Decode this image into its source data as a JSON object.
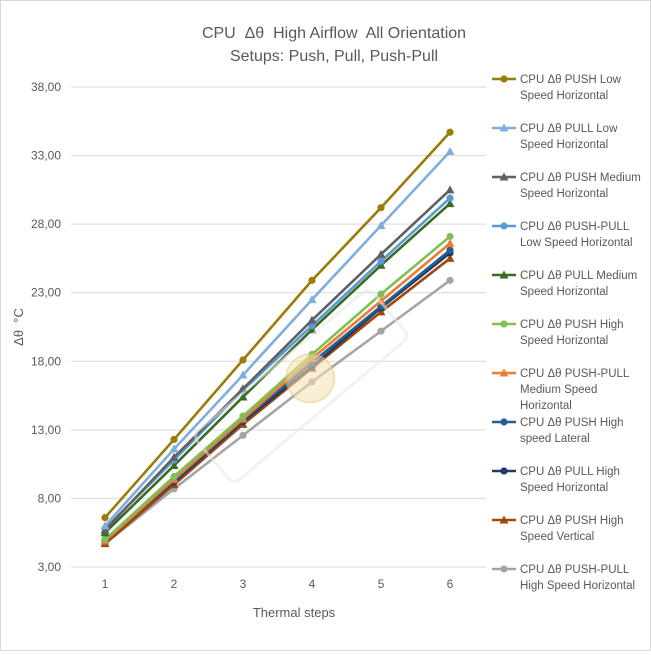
{
  "chart_data": {
    "type": "line",
    "title": "CPU  Δθ  High Airflow  All Orientation",
    "subtitle": "Setups: Push, Pull, Push-Pull",
    "xlabel": "Thermal steps",
    "ylabel": "Δθ  °C",
    "x": [
      1,
      2,
      3,
      4,
      5,
      6
    ],
    "x_tick_labels": [
      "1",
      "2",
      "3",
      "4",
      "5",
      "6"
    ],
    "ylim": [
      3,
      38
    ],
    "y_tick_labels": [
      "3,00",
      "8,00",
      "13,00",
      "18,00",
      "23,00",
      "28,00",
      "33,00",
      "38,00"
    ],
    "grid": "horizontal",
    "legend_position": "right",
    "series": [
      {
        "name": "CPU Δθ PUSH Low Speed Horizontal",
        "name_lines": [
          "CPU Δθ PUSH Low",
          "Speed Horizontal"
        ],
        "color": "#9C7B08",
        "marker": "circle",
        "values": [
          6.6,
          12.3,
          18.1,
          23.9,
          29.2,
          34.7
        ]
      },
      {
        "name": "CPU Δθ PULL Low Speed Horizontal",
        "name_lines": [
          "CPU Δθ PULL Low",
          "Speed Horizontal"
        ],
        "color": "#7DAEDE",
        "marker": "triangle",
        "values": [
          6.0,
          11.6,
          17.0,
          22.5,
          27.9,
          33.3
        ]
      },
      {
        "name": "CPU Δθ PUSH Medium Speed Horizontal",
        "name_lines": [
          "CPU Δθ PUSH Medium",
          "Speed Horizontal"
        ],
        "color": "#606060",
        "marker": "triangle",
        "values": [
          5.7,
          11.0,
          16.0,
          21.0,
          25.8,
          30.5
        ]
      },
      {
        "name": "CPU Δθ PUSH-PULL Low Speed Horizontal",
        "name_lines": [
          "CPU Δθ PUSH-PULL",
          "Low Speed Horizontal"
        ],
        "color": "#5B9BD5",
        "marker": "circle",
        "values": [
          5.8,
          10.8,
          15.9,
          20.6,
          25.3,
          29.9
        ]
      },
      {
        "name": "CPU Δθ PULL Medium Speed Horizontal",
        "name_lines": [
          "CPU Δθ PULL Medium",
          "Speed Horizontal"
        ],
        "color": "#3A6B24",
        "marker": "triangle",
        "values": [
          5.5,
          10.4,
          15.4,
          20.3,
          25.0,
          29.5
        ]
      },
      {
        "name": "CPU Δθ PUSH High Speed Horizontal",
        "name_lines": [
          "CPU Δθ PUSH High",
          "Speed Horizontal"
        ],
        "color": "#7FBF53",
        "marker": "circle",
        "values": [
          5.0,
          9.6,
          14.0,
          18.5,
          22.9,
          27.1
        ]
      },
      {
        "name": "CPU Δθ PUSH-PULL Medium Speed Horizontal",
        "name_lines": [
          "CPU Δθ PUSH-PULL",
          "Medium Speed",
          "Horizontal"
        ],
        "color": "#ED7D31",
        "marker": "triangle",
        "values": [
          4.9,
          9.4,
          13.8,
          18.2,
          22.4,
          26.6
        ]
      },
      {
        "name": "CPU Δθ PUSH High speed Lateral",
        "name_lines": [
          "CPU Δθ PUSH High",
          "speed Lateral"
        ],
        "color": "#255E91",
        "marker": "circle",
        "values": [
          4.9,
          9.3,
          13.7,
          17.9,
          22.0,
          26.1
        ]
      },
      {
        "name": "CPU Δθ PULL High Speed Horizontal",
        "name_lines": [
          "CPU Δθ PULL High",
          "Speed Horizontal"
        ],
        "color": "#203864",
        "marker": "circle",
        "values": [
          5.0,
          9.2,
          13.6,
          17.6,
          21.9,
          25.9
        ]
      },
      {
        "name": "CPU Δθ PUSH High Speed Vertical",
        "name_lines": [
          "CPU Δθ PUSH High",
          "Speed Vertical"
        ],
        "color": "#9E480E",
        "marker": "triangle",
        "values": [
          4.7,
          9.0,
          13.4,
          17.5,
          21.6,
          25.5
        ]
      },
      {
        "name": "CPU Δθ PUSH-PULL High Speed Horizontal",
        "name_lines": [
          "CPU Δθ PUSH-PULL",
          "High Speed Horizontal"
        ],
        "color": "#A5A5A5",
        "marker": "circle",
        "values": [
          4.7,
          8.7,
          12.6,
          16.5,
          20.2,
          23.9
        ]
      }
    ]
  }
}
